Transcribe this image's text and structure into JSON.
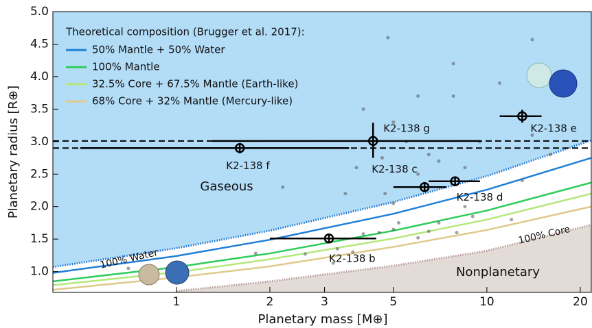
{
  "chart_data": {
    "type": "scatter",
    "xlabel": "Planetary mass [M⊕]",
    "ylabel": "Planetary radius [R⊕]",
    "xscale": "log",
    "xlim": [
      0.4,
      21.7
    ],
    "ylim": [
      0.68,
      5.0
    ],
    "xticks": [
      1,
      2,
      3,
      5,
      10,
      20
    ],
    "yticks": [
      {
        "value": 1,
        "label": "1.0"
      },
      1.5,
      {
        "value": 2,
        "label": "2.0"
      },
      2.5,
      {
        "value": 3,
        "label": "3.0"
      },
      3.5,
      {
        "value": 4,
        "label": "4.0"
      },
      4.5,
      {
        "value": 5,
        "label": "5.0"
      }
    ],
    "legend_title": "Theoretical composition (Brugger et al. 2017):",
    "legend_position": "upper left",
    "series": [
      {
        "name": "50% Mantle + 50% Water",
        "color": "#1f7fd8",
        "x": [
          0.4,
          1,
          2,
          5,
          10,
          21.7
        ],
        "y": [
          0.98,
          1.24,
          1.49,
          1.89,
          2.26,
          2.75
        ]
      },
      {
        "name": "100% Mantle",
        "color": "#2ecc5a",
        "x": [
          0.4,
          1,
          2,
          5,
          10,
          21.7
        ],
        "y": [
          0.85,
          1.07,
          1.28,
          1.63,
          1.94,
          2.37
        ]
      },
      {
        "name": "32.5% Core + 67.5% Mantle (Earth-like)",
        "color": "#b5e87a",
        "x": [
          0.4,
          1,
          2,
          5,
          10,
          21.7
        ],
        "y": [
          0.79,
          0.99,
          1.19,
          1.51,
          1.8,
          2.2
        ]
      },
      {
        "name": "68% Core + 32% Mantle (Mercury-like)",
        "color": "#e0c98a",
        "x": [
          0.4,
          1,
          2,
          5,
          10,
          21.7
        ],
        "y": [
          0.72,
          0.91,
          1.08,
          1.38,
          1.64,
          2.0
        ]
      }
    ],
    "water_boundary": {
      "label": "100% Water",
      "color": "#1a73d0",
      "fill": "#b3dcf7",
      "x": [
        0.4,
        1,
        2,
        5,
        10,
        21.7
      ],
      "y": [
        1.07,
        1.36,
        1.63,
        2.07,
        2.47,
        3.02
      ]
    },
    "core_boundary": {
      "label": "100% Core",
      "color": "#b89a9a",
      "fill": "#e2dbd6",
      "x": [
        1,
        2,
        5,
        10,
        21.7
      ],
      "y": [
        0.7,
        0.85,
        1.09,
        1.32,
        1.72
      ]
    },
    "regions": [
      "Gaseous",
      "Nonplanetary"
    ],
    "known_planets": {
      "color": "#555555",
      "x": [
        0.7,
        1.8,
        2.6,
        3.2,
        3.3,
        3.7,
        4.0,
        4.5,
        5.0,
        5.2,
        6.0,
        6.5,
        7.0,
        8.0,
        9.0,
        8.5,
        5.0,
        4.7,
        3.5,
        6.0,
        6.5,
        5.5,
        5.0,
        4.6,
        7.0,
        8.5,
        3.8,
        4.0,
        6.0,
        7.8,
        7.8,
        11,
        14,
        4.8,
        13,
        12,
        2.2,
        9.5,
        16,
        14
      ],
      "y": [
        1.05,
        1.28,
        1.27,
        1.13,
        1.35,
        1.3,
        1.58,
        1.6,
        1.65,
        1.75,
        1.52,
        1.62,
        1.75,
        1.6,
        1.85,
        2.0,
        2.05,
        2.2,
        2.2,
        2.5,
        2.8,
        3.0,
        3.3,
        2.75,
        2.7,
        2.6,
        2.6,
        3.5,
        3.7,
        3.7,
        4.2,
        3.9,
        4.57,
        4.6,
        2.4,
        1.8,
        2.3,
        3.0,
        2.8,
        3.1
      ]
    },
    "planets": [
      {
        "name": "K2-138 b",
        "x": 3.1,
        "y": 1.51,
        "xerr": [
          1.1,
          1.3
        ],
        "yerr": [
          0.07,
          0.07
        ]
      },
      {
        "name": "K2-138 c",
        "x": 6.3,
        "y": 2.3,
        "xerr": [
          1.3,
          1.1
        ],
        "yerr": [
          0.06,
          0.06
        ]
      },
      {
        "name": "K2-138 d",
        "x": 7.9,
        "y": 2.39,
        "xerr": [
          1.4,
          1.6
        ],
        "yerr": [
          0.06,
          0.06
        ]
      },
      {
        "name": "K2-138 e",
        "x": 13.0,
        "y": 3.39,
        "xerr": [
          2.0,
          2.0
        ],
        "yerr": [
          0.1,
          0.1
        ]
      },
      {
        "name": "K2-138 f",
        "x": 1.6,
        "y": 2.9,
        "xerr": [
          1.11,
          2.0
        ],
        "yerr": [
          0.08,
          0.08
        ]
      },
      {
        "name": "K2-138 g",
        "x": 4.3,
        "y": 3.01,
        "xerr": [
          3.0,
          5.2
        ],
        "yerr": [
          0.26,
          0.28
        ]
      }
    ]
  }
}
